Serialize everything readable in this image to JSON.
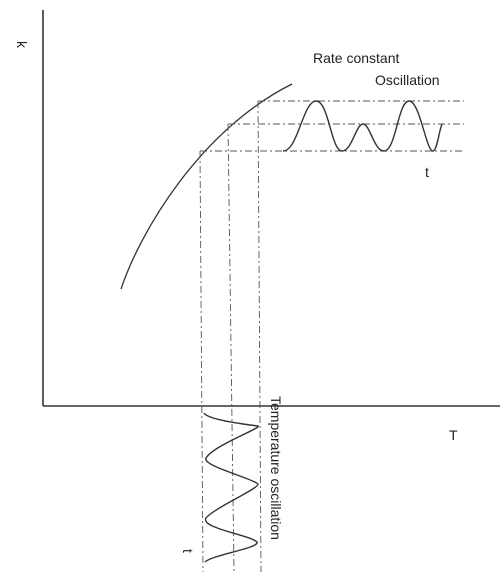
{
  "labels": {
    "y_axis": "k",
    "x_axis": "T",
    "rate_constant": "Rate constant",
    "oscillation": "Oscillation",
    "time_right": "t",
    "time_bottom": "t",
    "temperature_oscillation": "Temperature oscillation"
  }
}
